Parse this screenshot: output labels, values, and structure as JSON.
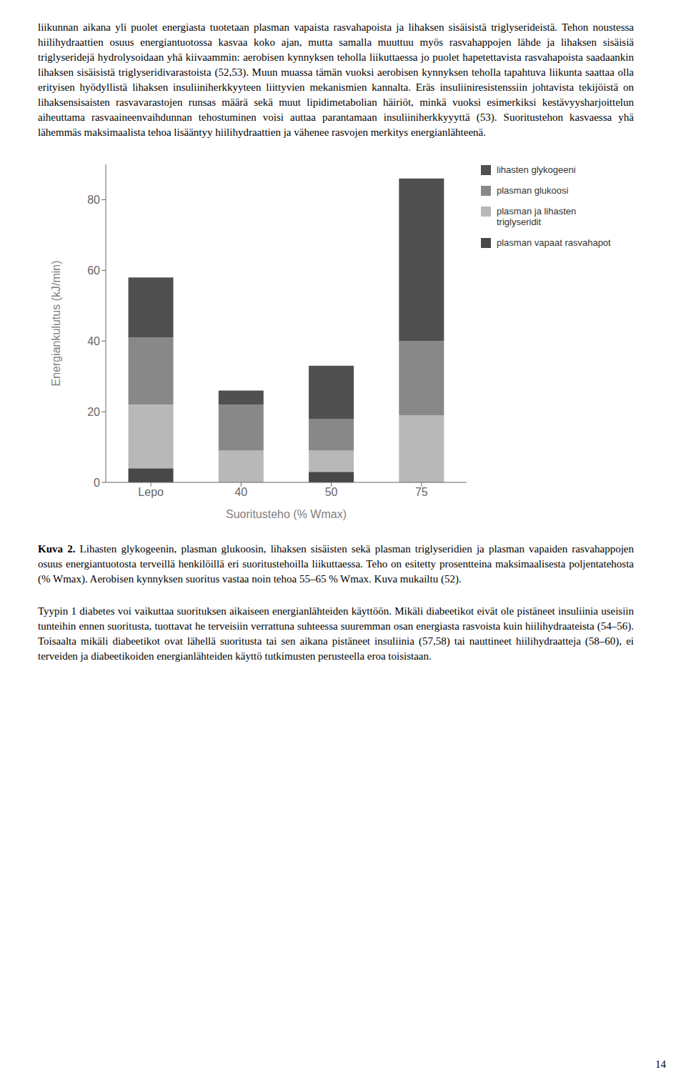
{
  "chart_data": {
    "type": "bar",
    "stacked": true,
    "categories": [
      "Lepo",
      "40",
      "50",
      "75"
    ],
    "xlabel": "Suoritusteho (% Wmax)",
    "ylabel": "Energiankulutus (kJ/min)",
    "ylim": [
      0,
      90
    ],
    "yticks": [
      0,
      20,
      40,
      60,
      80
    ],
    "grid": false,
    "legend": "upper right",
    "series": [
      {
        "name": "plasman vapaat rasvahapot",
        "color": "#484848",
        "values": [
          4,
          0,
          3,
          0
        ]
      },
      {
        "name": "plasman ja lihasten\ntriglyseridit",
        "color": "#b8b8b8",
        "values": [
          18,
          9,
          6,
          19
        ]
      },
      {
        "name": "plasman glukoosi",
        "color": "#888888",
        "values": [
          19,
          13,
          9,
          21
        ]
      },
      {
        "name": "lihasten glykogeeni",
        "color": "#505050",
        "values": [
          17,
          4,
          15,
          46
        ]
      }
    ],
    "annotations": [
      "liikunnan aikana yli puolet energiasta tuotetaan plasman vapaista rasvahapoista ja lihaksen sisäisistä triglyserideistä. Tehon noustessa hiilihydraattien osuus energiantuotossa kasvaa koko ajan, mutta samalla muuttuu myös rasvahappojen lähde ja lihaksen sisäisiä triglyseridejä hydrolysoidaan yhä kiivaammin: aerobisen kynnyksen teholla liikuttaessa jo puolet hapetettavista rasvahapoista saadaankin lihaksen sisäisistä triglyseridivarastoista (52,53). Muun muassa tämän vuoksi aerobisen kynnyksen teholla tapahtuva liikunta saattaa olla erityisen hyödyllistä lihaksen insuliiniherkkyyteen liittyvien mekanismien kannalta. Eräs insuliiniresistenssiin johtavista tekijöistä on lihaksensisaisten rasvavarastojen runsas määrä sekä muut lipidimetabolian häiriöt, minkä vuoksi esimerkiksi kestävyysharjoittelun aiheuttama rasvaaineenvaihdunnan tehostuminen voisi auttaa parantamaan insuliiniherkkyyyttä (53). Suoritustehon kasvaessa yhä lähemmäs maksimaalista tehoa lisääntyy hiilihydraattien ja vähenee rasvojen merkitys energianlähteenä.",
      "Kuva 2.",
      " Lihasten glykogeenin, plasman glukoosin, lihaksen sisäisten sekä plasman triglyseridien ja plasman vapaiden rasvahappojen osuus energiantuotosta terveillä henkilöillä eri suoritustehoilla liikuttaessa. Teho on esitetty prosentteina maksimaalisesta poljentatehosta (% Wmax). Aerobisen kynnyksen suoritus vastaa noin tehoa 55–65 % Wmax. Kuva mukailtu (52).",
      "Tyypin 1 diabetes voi vaikuttaa suorituksen aikaiseen energianlähteiden käyttöön. Mikäli diabeetikot eivät ole pistäneet insuliinia useisiin tunteihin ennen suoritusta, tuottavat he terveisiin verrattuna suhteessa suuremman osan energiasta rasvoista kuin hiilihydraateista (54–56). Toisaalta mikäli diabeetikot ovat lähellä suoritusta tai sen aikana pistäneet insuliinia (57,58) tai nauttineet hiilihydraatteja (58–60), ei terveiden ja diabeetikoiden energianlähteiden käyttö tutkimusten perusteella eroa toisistaan.",
      "14"
    ]
  }
}
